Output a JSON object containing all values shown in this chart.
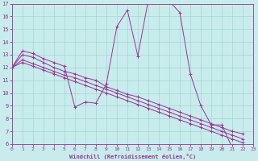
{
  "xlabel": "Windchill (Refroidissement éolien,°C)",
  "xlim": [
    0,
    23
  ],
  "ylim": [
    6,
    17
  ],
  "xticks": [
    0,
    1,
    2,
    3,
    4,
    5,
    6,
    7,
    8,
    9,
    10,
    11,
    12,
    13,
    14,
    15,
    16,
    17,
    18,
    19,
    20,
    21,
    22,
    23
  ],
  "yticks": [
    6,
    7,
    8,
    9,
    10,
    11,
    12,
    13,
    14,
    15,
    16,
    17
  ],
  "bg_color": "#c8ecec",
  "grid_color": "#9ecece",
  "line_color": "#993399",
  "curves": [
    {
      "x": [
        0,
        1,
        2,
        3,
        4,
        5,
        6,
        7,
        8,
        9,
        10,
        11,
        12,
        13,
        14,
        15,
        16,
        17,
        18,
        19,
        20,
        21,
        22
      ],
      "y": [
        12.0,
        13.3,
        13.1,
        12.7,
        12.4,
        12.1,
        8.9,
        9.3,
        9.2,
        10.7,
        15.2,
        16.5,
        12.9,
        17.3,
        17.2,
        17.2,
        16.3,
        11.5,
        9.0,
        7.5,
        7.5,
        5.7,
        5.7
      ]
    },
    {
      "x": [
        0,
        1,
        2,
        3,
        4,
        5,
        6,
        7,
        8,
        9,
        10,
        11,
        12,
        13,
        14,
        15,
        16,
        17,
        18,
        19,
        20,
        21,
        22
      ],
      "y": [
        12.0,
        13.0,
        12.8,
        12.4,
        12.0,
        11.7,
        11.5,
        11.2,
        11.0,
        10.5,
        10.2,
        9.9,
        9.7,
        9.4,
        9.1,
        8.8,
        8.5,
        8.2,
        7.9,
        7.6,
        7.3,
        7.0,
        6.8
      ]
    },
    {
      "x": [
        0,
        1,
        2,
        3,
        4,
        5,
        6,
        7,
        8,
        9,
        10,
        11,
        12,
        13,
        14,
        15,
        16,
        17,
        18,
        19,
        20,
        21,
        22
      ],
      "y": [
        12.0,
        12.6,
        12.3,
        12.0,
        11.7,
        11.4,
        11.2,
        10.9,
        10.6,
        10.3,
        10.0,
        9.7,
        9.4,
        9.1,
        8.8,
        8.5,
        8.2,
        7.9,
        7.6,
        7.3,
        7.0,
        6.7,
        6.4
      ]
    },
    {
      "x": [
        0,
        1,
        2,
        3,
        4,
        5,
        6,
        7,
        8,
        9,
        10,
        11,
        12,
        13,
        14,
        15,
        16,
        17,
        18,
        19,
        20,
        21,
        22
      ],
      "y": [
        12.0,
        12.4,
        12.1,
        11.8,
        11.5,
        11.2,
        10.9,
        10.6,
        10.3,
        10.0,
        9.7,
        9.4,
        9.1,
        8.8,
        8.5,
        8.2,
        7.9,
        7.6,
        7.3,
        7.0,
        6.7,
        6.4,
        6.1
      ]
    }
  ]
}
